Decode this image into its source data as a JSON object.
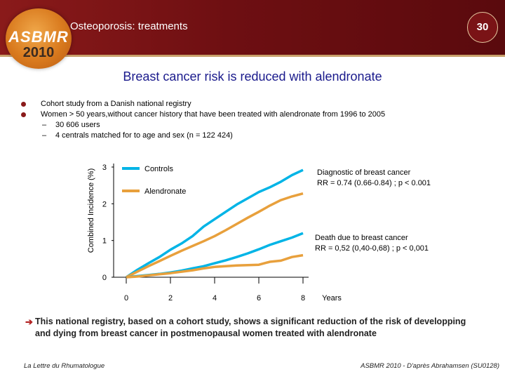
{
  "header": {
    "logo_text": "ASBMR",
    "logo_year": "2010",
    "title": "Osteoporosis: treatments",
    "slide_number": "30"
  },
  "slide_title": "Breast cancer risk is reduced with alendronate",
  "bullets": [
    "Cohort study from a Danish national registry",
    "Women > 50 years,without cancer history that have been treated with alendronate from 1996 to 2005"
  ],
  "sub_bullets": [
    "30 606 users",
    "4 centrals matched for to age and sex (n = 122 424)"
  ],
  "dash": "–",
  "chart_data": {
    "type": "line",
    "ylabel": "Combined Incidence (%)",
    "xlabel": "Years",
    "xlim": [
      0,
      8
    ],
    "ylim": [
      0,
      3
    ],
    "x_ticks": [
      "0",
      "2",
      "4",
      "6",
      "8"
    ],
    "y_ticks": [
      "0",
      "1",
      "2",
      "3"
    ],
    "legend": [
      "Controls",
      "Alendronate"
    ],
    "series": [
      {
        "name": "Diagnostic of breast cancer – Controls",
        "color": "#00b4e6",
        "x": [
          0,
          0.5,
          1,
          1.5,
          2,
          2.5,
          3,
          3.5,
          4,
          4.5,
          5,
          5.5,
          6,
          6.5,
          7,
          7.5,
          8
        ],
        "y": [
          0,
          0.2,
          0.38,
          0.55,
          0.75,
          0.92,
          1.12,
          1.38,
          1.58,
          1.78,
          1.98,
          2.15,
          2.32,
          2.45,
          2.6,
          2.78,
          2.92
        ]
      },
      {
        "name": "Diagnostic of breast cancer – Alendronate",
        "color": "#e8a03c",
        "x": [
          0,
          0.5,
          1,
          1.5,
          2,
          2.5,
          3,
          3.5,
          4,
          4.5,
          5,
          5.5,
          6,
          6.5,
          7,
          7.5,
          8
        ],
        "y": [
          0,
          0.15,
          0.3,
          0.44,
          0.58,
          0.72,
          0.85,
          0.98,
          1.12,
          1.28,
          1.45,
          1.62,
          1.78,
          1.95,
          2.1,
          2.2,
          2.28
        ]
      },
      {
        "name": "Death due to breast cancer – Controls",
        "color": "#00b4e6",
        "x": [
          0,
          0.5,
          1,
          1.5,
          2,
          2.5,
          3,
          3.5,
          4,
          4.5,
          5,
          5.5,
          6,
          6.5,
          7,
          7.5,
          8
        ],
        "y": [
          0,
          0.03,
          0.06,
          0.09,
          0.13,
          0.18,
          0.24,
          0.3,
          0.38,
          0.46,
          0.55,
          0.65,
          0.76,
          0.88,
          0.98,
          1.08,
          1.2
        ]
      },
      {
        "name": "Death due to breast cancer – Alendronate",
        "color": "#e8a03c",
        "x": [
          0,
          0.5,
          1,
          1.5,
          2,
          2.5,
          3,
          3.5,
          4,
          4.5,
          5,
          5.5,
          6,
          6.5,
          7,
          7.5,
          8
        ],
        "y": [
          0,
          0.02,
          0.05,
          0.08,
          0.11,
          0.15,
          0.19,
          0.24,
          0.28,
          0.3,
          0.32,
          0.33,
          0.34,
          0.42,
          0.45,
          0.55,
          0.6
        ]
      }
    ],
    "annotations": [
      {
        "id": "diagnostic",
        "line1": "Diagnostic of breast cancer",
        "line2": "RR = 0.74 (0.66-0.84) ; p < 0.001"
      },
      {
        "id": "death",
        "line1": "Death due to breast cancer",
        "line2": "RR = 0,52 (0,40-0,68) ; p < 0,001"
      }
    ]
  },
  "conclusion": "This national registry, based on a cohort study, shows a significant reduction of the risk of developping and dying from breast cancer in postmenopausal women treated with alendronate",
  "footer": {
    "left": "La Lettre du Rhumatologue",
    "right": "ASBMR 2010 - D'après Abrahamsen (SU0128)"
  }
}
